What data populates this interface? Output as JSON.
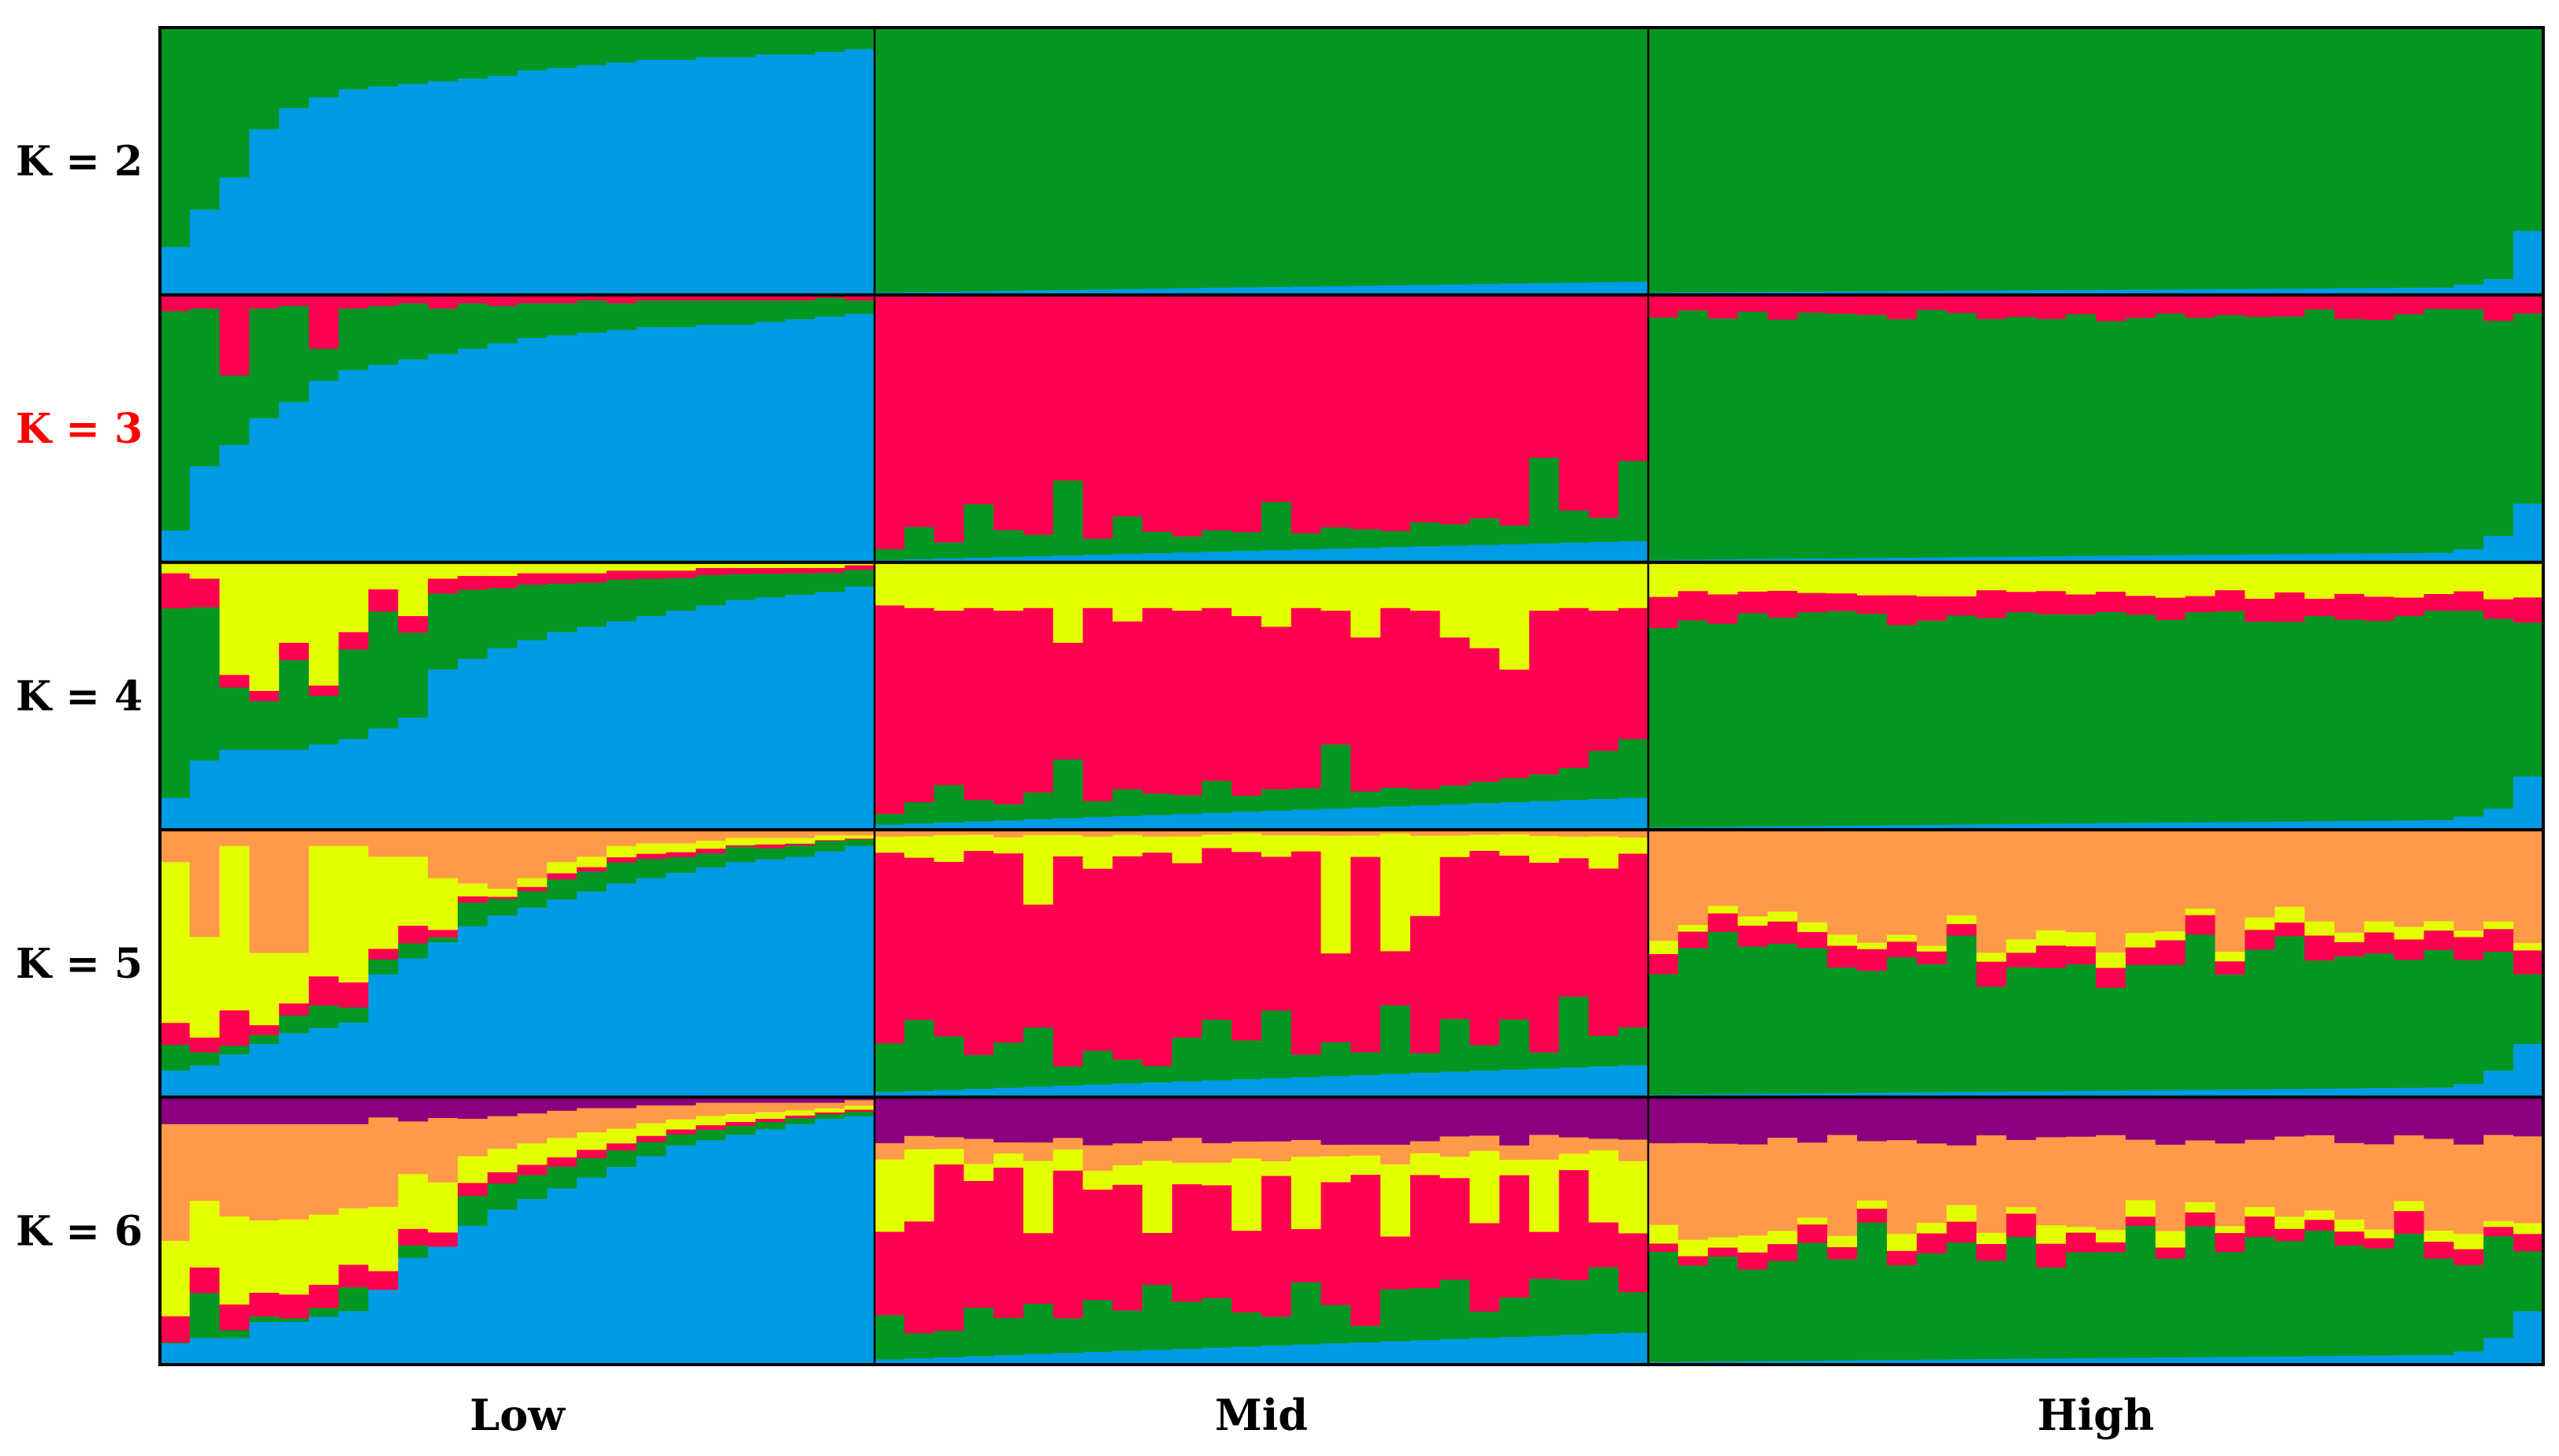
{
  "chart_data": {
    "type": "bar",
    "stacked": true,
    "normalized": true,
    "ylim": [
      0,
      1
    ],
    "groups": [
      {
        "name": "Low",
        "count": 24
      },
      {
        "name": "Mid",
        "count": 26
      },
      {
        "name": "High",
        "count": 30
      }
    ],
    "colors": {
      "blue": "#009be5",
      "green": "#039623",
      "red": "#ff0050",
      "yellow": "#e4ff00",
      "orange": "#ff9a48",
      "purple": "#8b007f",
      "frame": "#000000"
    },
    "panels": [
      {
        "label": "K = 2",
        "label_color": "#000000",
        "layer_order": [
          "blue",
          "green"
        ],
        "groups": {
          "Low": {
            "blue": [
              0.18,
              0.32,
              0.44,
              0.62,
              0.7,
              0.74,
              0.77,
              0.78,
              0.79,
              0.8,
              0.81,
              0.82,
              0.84,
              0.85,
              0.86,
              0.87,
              0.88,
              0.88,
              0.89,
              0.89,
              0.9,
              0.9,
              0.91,
              0.92
            ]
          },
          "Mid": {
            "blue_range": [
              0.01,
              0.05
            ]
          },
          "High": {
            "blue_range": [
              0.01,
              0.03
            ],
            "blue_tail": [
              0.04,
              0.06,
              0.24
            ]
          }
        }
      },
      {
        "label": "K = 3",
        "label_color": "#ff0000",
        "layer_order": [
          "blue",
          "green",
          "red"
        ],
        "groups": {
          "Low": {
            "blue": [
              0.12,
              0.36,
              0.44,
              0.54,
              0.6,
              0.68,
              0.72,
              0.74,
              0.76,
              0.78,
              0.8,
              0.82,
              0.84,
              0.85,
              0.86,
              0.87,
              0.88,
              0.88,
              0.89,
              0.89,
              0.9,
              0.91,
              0.92,
              0.93
            ],
            "red": [
              0.06,
              0.05,
              0.3,
              0.05,
              0.04,
              0.2,
              0.05,
              0.04,
              0.03,
              0.05,
              0.03,
              0.04,
              0.03,
              0.03,
              0.02,
              0.03,
              0.02,
              0.02,
              0.02,
              0.02,
              0.02,
              0.02,
              0.01,
              0.02
            ]
          },
          "Mid": {
            "blue_range": [
              0.01,
              0.08
            ],
            "green": [
              0.04,
              0.12,
              0.06,
              0.2,
              0.1,
              0.08,
              0.28,
              0.06,
              0.14,
              0.08,
              0.06,
              0.08,
              0.07,
              0.18,
              0.06,
              0.08,
              0.07,
              0.06,
              0.09,
              0.08,
              0.1,
              0.07,
              0.32,
              0.12,
              0.09,
              0.3
            ]
          },
          "High": {
            "blue_range": [
              0.01,
              0.04
            ],
            "blue_tail": [
              0.05,
              0.1,
              0.22
            ],
            "red_range": [
              0.05,
              0.1
            ]
          }
        }
      },
      {
        "label": "K = 4",
        "label_color": "#000000",
        "layer_order": [
          "blue",
          "green",
          "red",
          "yellow"
        ],
        "groups": {
          "Low": {
            "blue": [
              0.12,
              0.26,
              0.3,
              0.3,
              0.3,
              0.32,
              0.34,
              0.38,
              0.42,
              0.6,
              0.64,
              0.68,
              0.71,
              0.74,
              0.76,
              0.78,
              0.8,
              0.82,
              0.84,
              0.86,
              0.87,
              0.88,
              0.89,
              0.91
            ],
            "yellow": [
              0.04,
              0.06,
              0.42,
              0.48,
              0.3,
              0.46,
              0.26,
              0.1,
              0.2,
              0.06,
              0.05,
              0.05,
              0.04,
              0.04,
              0.04,
              0.03,
              0.03,
              0.03,
              0.02,
              0.02,
              0.02,
              0.02,
              0.02,
              0.01
            ]
          },
          "Mid": {
            "blue_range": [
              0.02,
              0.12
            ],
            "green": [
              0.04,
              0.08,
              0.14,
              0.08,
              0.06,
              0.1,
              0.22,
              0.06,
              0.1,
              0.08,
              0.07,
              0.12,
              0.06,
              0.08,
              0.08,
              0.24,
              0.06,
              0.07,
              0.06,
              0.07,
              0.08,
              0.09,
              0.1,
              0.12,
              0.18,
              0.22
            ],
            "yellow": [
              0.16,
              0.17,
              0.18,
              0.17,
              0.18,
              0.17,
              0.3,
              0.17,
              0.22,
              0.17,
              0.18,
              0.17,
              0.2,
              0.24,
              0.17,
              0.18,
              0.28,
              0.17,
              0.18,
              0.28,
              0.32,
              0.4,
              0.18,
              0.17,
              0.18,
              0.17
            ]
          },
          "High": {
            "blue_range": [
              0.01,
              0.04
            ],
            "blue_tail": [
              0.05,
              0.08,
              0.2
            ],
            "red_range": [
              0.06,
              0.12
            ],
            "yellow_range": [
              0.1,
              0.14
            ]
          }
        }
      },
      {
        "label": "K = 5",
        "label_color": "#000000",
        "layer_order": [
          "blue",
          "green",
          "red",
          "yellow",
          "orange"
        ],
        "groups": {
          "Low": {
            "blue": [
              0.1,
              0.12,
              0.16,
              0.2,
              0.24,
              0.26,
              0.28,
              0.46,
              0.52,
              0.58,
              0.64,
              0.68,
              0.71,
              0.74,
              0.77,
              0.8,
              0.82,
              0.84,
              0.86,
              0.88,
              0.89,
              0.9,
              0.92,
              0.94
            ],
            "orange": [
              0.12,
              0.4,
              0.06,
              0.46,
              0.46,
              0.06,
              0.06,
              0.1,
              0.1,
              0.18,
              0.2,
              0.22,
              0.18,
              0.12,
              0.1,
              0.06,
              0.05,
              0.05,
              0.04,
              0.03,
              0.03,
              0.03,
              0.02,
              0.02
            ]
          },
          "Mid": {
            "blue_range": [
              0.02,
              0.12
            ],
            "yellow": [
              0.06,
              0.08,
              0.1,
              0.06,
              0.06,
              0.26,
              0.08,
              0.12,
              0.08,
              0.06,
              0.1,
              0.05,
              0.07,
              0.08,
              0.06,
              0.44,
              0.08,
              0.44,
              0.3,
              0.08,
              0.06,
              0.08,
              0.1,
              0.08,
              0.12,
              0.06
            ]
          },
          "High": {
            "blue_range": [
              0.01,
              0.04
            ],
            "blue_tail": [
              0.05,
              0.1,
              0.2
            ],
            "orange_range": [
              0.28,
              0.46
            ]
          }
        }
      },
      {
        "label": "K = 6",
        "label_color": "#000000",
        "layer_order": [
          "blue",
          "green",
          "red",
          "yellow",
          "orange",
          "purple"
        ],
        "groups": {
          "Low": {
            "blue": [
              0.08,
              0.1,
              0.1,
              0.16,
              0.16,
              0.18,
              0.2,
              0.3,
              0.4,
              0.46,
              0.52,
              0.58,
              0.62,
              0.66,
              0.7,
              0.74,
              0.78,
              0.82,
              0.84,
              0.86,
              0.88,
              0.9,
              0.92,
              0.93
            ],
            "purple": [
              0.1,
              0.1,
              0.1,
              0.1,
              0.1,
              0.1,
              0.1,
              0.08,
              0.09,
              0.08,
              0.08,
              0.07,
              0.06,
              0.05,
              0.04,
              0.04,
              0.03,
              0.03,
              0.02,
              0.02,
              0.02,
              0.02,
              0.02,
              0.01
            ]
          },
          "Mid": {
            "blue_range": [
              0.02,
              0.12
            ],
            "purple_range": [
              0.14,
              0.18
            ]
          },
          "High": {
            "blue_range": [
              0.01,
              0.04
            ],
            "blue_tail": [
              0.05,
              0.1,
              0.2
            ],
            "purple_range": [
              0.14,
              0.18
            ],
            "orange_range": [
              0.22,
              0.38
            ]
          }
        }
      }
    ],
    "xlabel": "",
    "ylabel": ""
  }
}
